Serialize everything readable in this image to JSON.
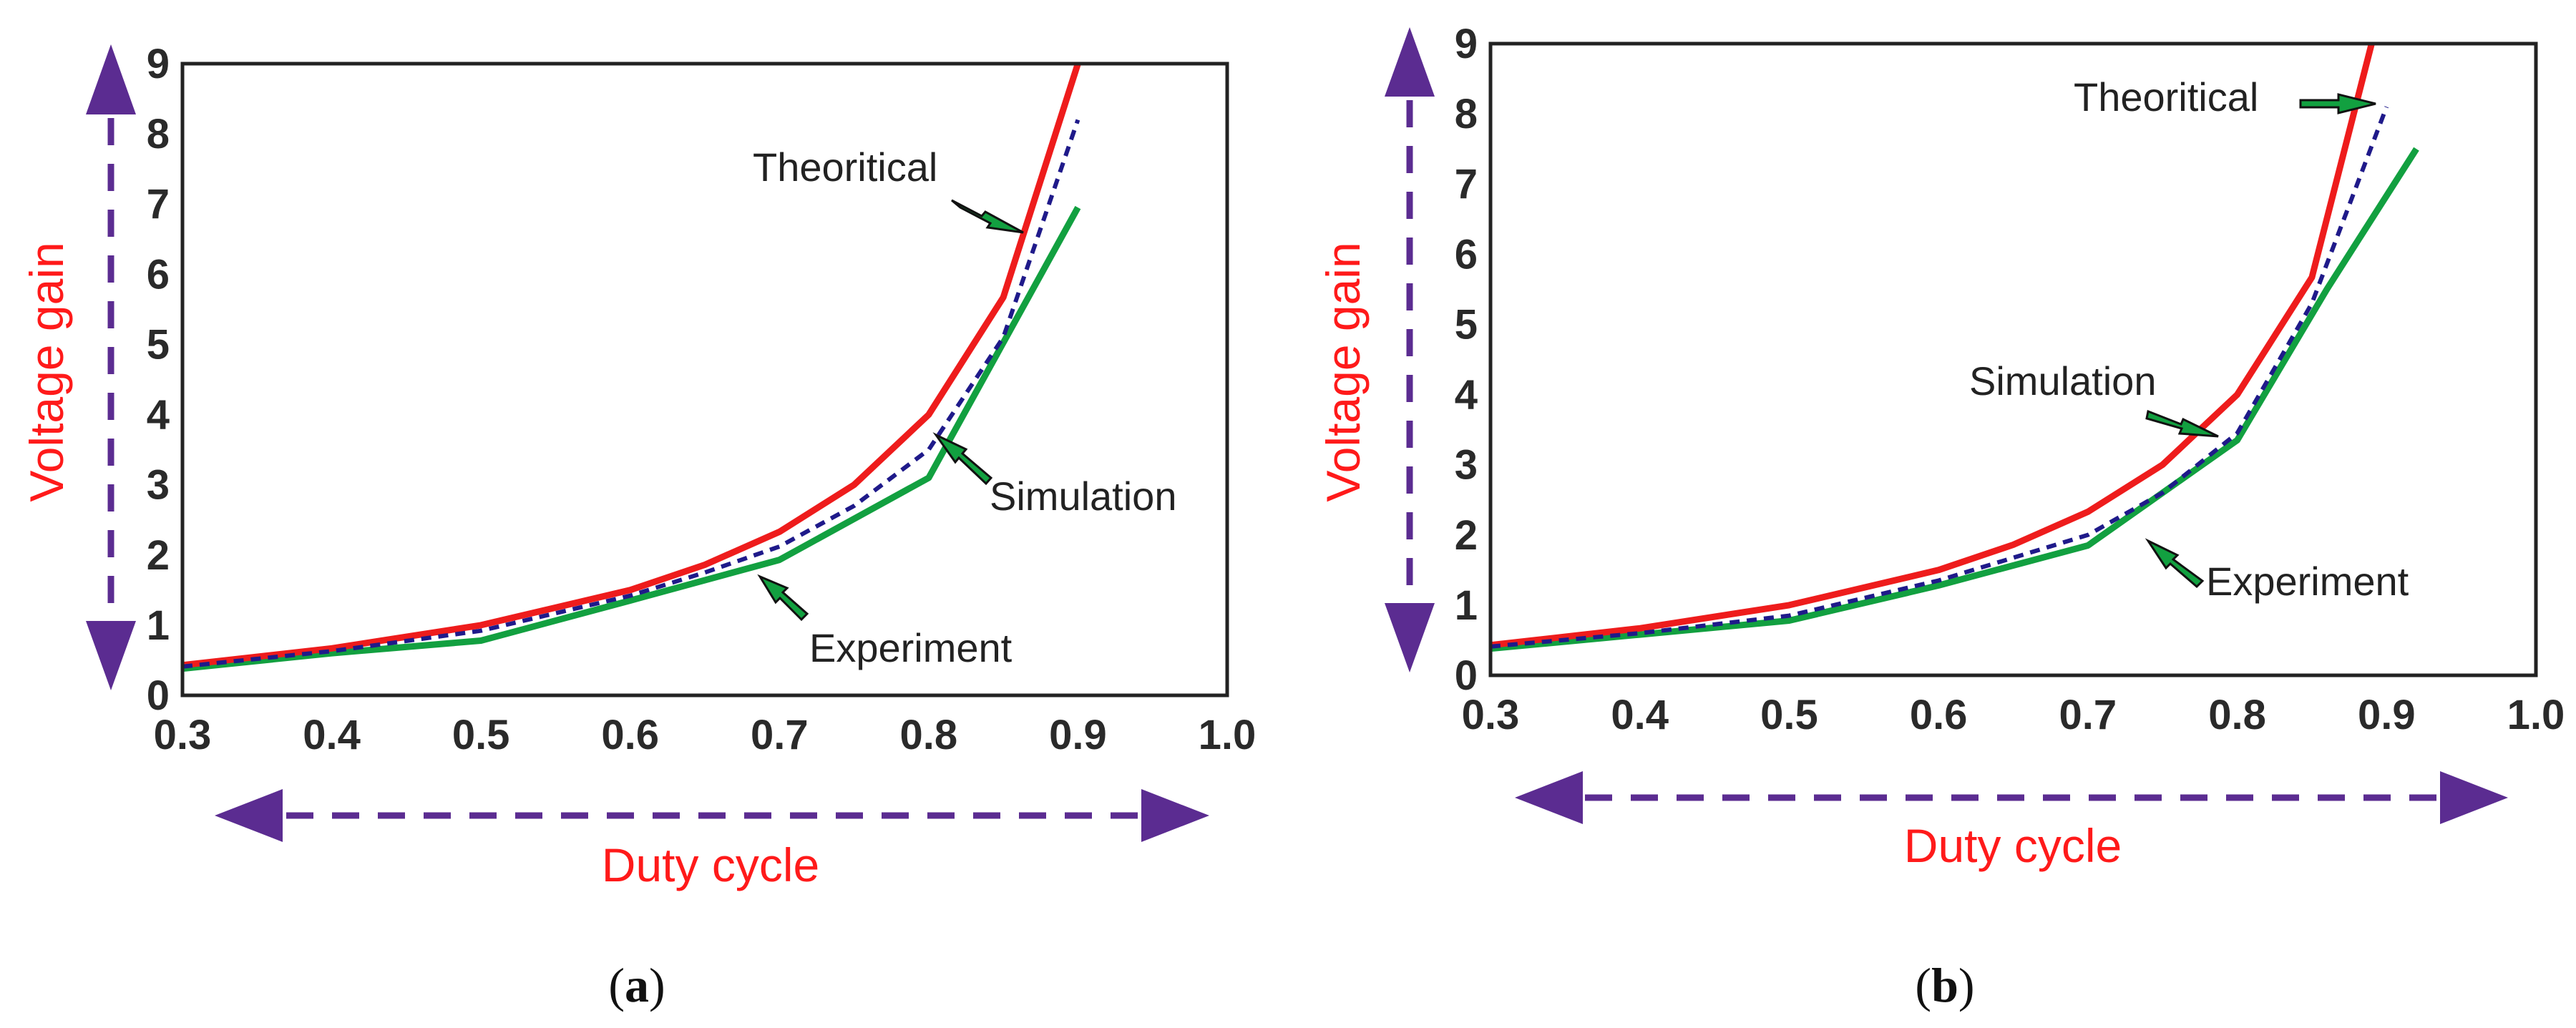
{
  "colors": {
    "theoretical": "#ee1c1c",
    "simulation": "#1f1a8a",
    "experiment": "#12a040",
    "arrow_fill": "#12a040",
    "axis_label": "#ff1a1a",
    "big_arrow": "#5b2c91",
    "frame": "#222222"
  },
  "chart_data": [
    {
      "panel": "(a)",
      "panel_letter": "a",
      "type": "line",
      "xlabel": "Duty cycle",
      "ylabel": "Voltage gain",
      "xlim": [
        0.3,
        1.0
      ],
      "ylim": [
        0,
        9
      ],
      "x_ticks": [
        "0.3",
        "0.4",
        "0.5",
        "0.6",
        "0.7",
        "0.8",
        "0.9",
        "1.0"
      ],
      "y_ticks": [
        "0",
        "1",
        "2",
        "3",
        "4",
        "5",
        "6",
        "7",
        "8",
        "9"
      ],
      "series": [
        {
          "name": "Theoritical",
          "x": [
            0.3,
            0.4,
            0.5,
            0.6,
            0.65,
            0.7,
            0.75,
            0.8,
            0.85,
            0.9
          ],
          "y": [
            0.43,
            0.67,
            1.0,
            1.5,
            1.86,
            2.33,
            3.0,
            4.0,
            5.67,
            9.0
          ]
        },
        {
          "name": "Simulation",
          "x": [
            0.3,
            0.4,
            0.5,
            0.6,
            0.65,
            0.7,
            0.75,
            0.8,
            0.85,
            0.9
          ],
          "y": [
            0.41,
            0.63,
            0.92,
            1.42,
            1.75,
            2.12,
            2.7,
            3.5,
            5.1,
            8.2
          ]
        },
        {
          "name": "Experiment",
          "x": [
            0.3,
            0.4,
            0.5,
            0.6,
            0.7,
            0.8,
            0.9
          ],
          "y": [
            0.38,
            0.6,
            0.78,
            1.35,
            1.93,
            3.1,
            6.95
          ]
        }
      ],
      "annotations": [
        "Theoritical",
        "Simulation",
        "Experiment"
      ]
    },
    {
      "panel": "(b)",
      "panel_letter": "b",
      "type": "line",
      "xlabel": "Duty cycle",
      "ylabel": "Voltage gain",
      "xlim": [
        0.3,
        1.0
      ],
      "ylim": [
        0,
        9
      ],
      "x_ticks": [
        "0.3",
        "0.4",
        "0.5",
        "0.6",
        "0.7",
        "0.8",
        "0.9",
        "1.0"
      ],
      "y_ticks": [
        "0",
        "1",
        "2",
        "3",
        "4",
        "5",
        "6",
        "7",
        "8",
        "9"
      ],
      "series": [
        {
          "name": "Theoritical",
          "x": [
            0.3,
            0.4,
            0.5,
            0.6,
            0.65,
            0.7,
            0.75,
            0.8,
            0.85,
            0.89
          ],
          "y": [
            0.43,
            0.67,
            1.0,
            1.5,
            1.86,
            2.33,
            3.0,
            4.0,
            5.67,
            9.0
          ]
        },
        {
          "name": "Simulation",
          "x": [
            0.3,
            0.4,
            0.5,
            0.6,
            0.7,
            0.75,
            0.8,
            0.85,
            0.9
          ],
          "y": [
            0.41,
            0.6,
            0.85,
            1.35,
            2.0,
            2.6,
            3.45,
            5.3,
            8.1
          ]
        },
        {
          "name": "Experiment",
          "x": [
            0.3,
            0.4,
            0.5,
            0.6,
            0.7,
            0.8,
            0.86,
            0.92
          ],
          "y": [
            0.38,
            0.58,
            0.78,
            1.28,
            1.85,
            3.35,
            5.5,
            7.5
          ]
        }
      ],
      "annotations": [
        "Theoritical",
        "Simulation",
        "Experiment"
      ]
    }
  ]
}
